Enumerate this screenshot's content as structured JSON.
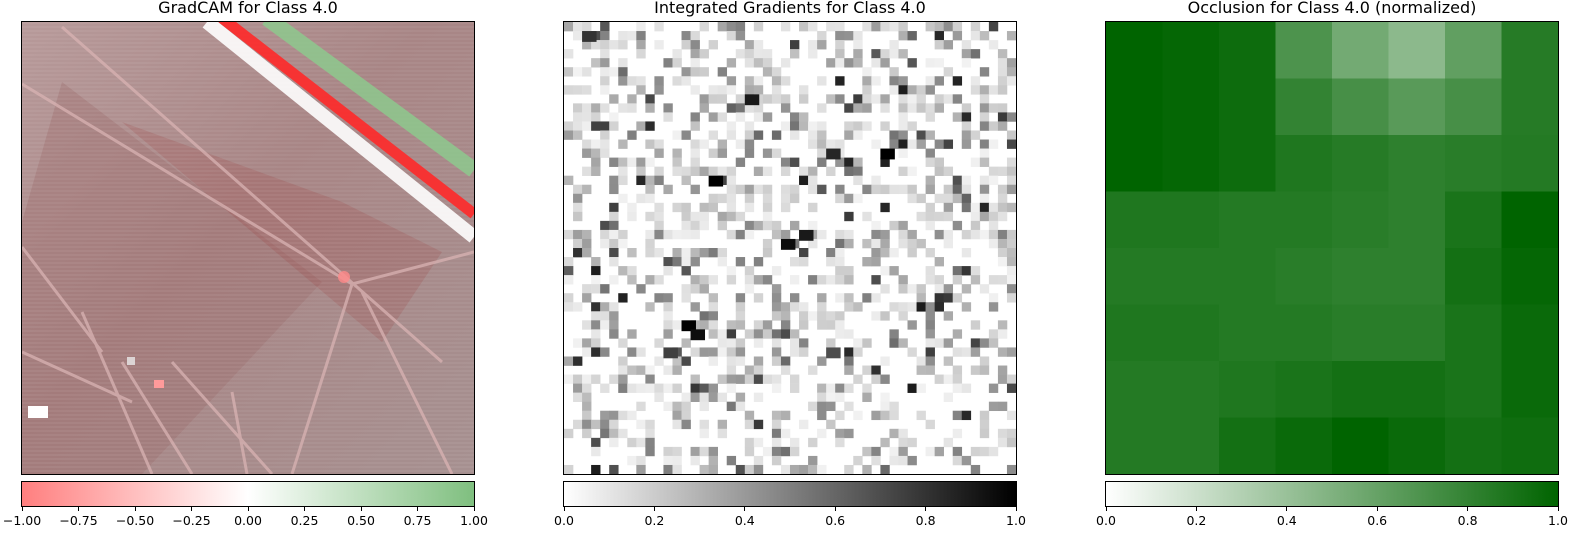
{
  "chart_data": [
    {
      "type": "heatmap",
      "title": "GradCAM for Class 4.0",
      "cmap": "red-white-green (diverging)",
      "colors": {
        "low": "#ff7f7f",
        "mid": "#ffffff",
        "high": "#7fbf7f"
      },
      "colorbar": {
        "range": [
          -1.0,
          1.0
        ],
        "ticks": [
          -1.0,
          -0.75,
          -0.5,
          -0.25,
          0.0,
          0.25,
          0.5,
          0.75,
          1.0
        ],
        "tick_labels": [
          "−1.00",
          "−0.75",
          "−0.50",
          "−0.25",
          "0.00",
          "0.25",
          "0.50",
          "0.75",
          "1.00"
        ]
      }
    },
    {
      "type": "heatmap",
      "title": "Integrated Gradients for Class 4.0",
      "cmap": "greys",
      "colors": {
        "low": "#ffffff",
        "high": "#000000"
      },
      "colorbar": {
        "range": [
          0.0,
          1.0
        ],
        "ticks": [
          0.0,
          0.2,
          0.4,
          0.6,
          0.8,
          1.0
        ],
        "tick_labels": [
          "0.0",
          "0.2",
          "0.4",
          "0.6",
          "0.8",
          "1.0"
        ]
      }
    },
    {
      "type": "heatmap",
      "title": "Occlusion for Class 4.0 (normalized)",
      "cmap": "white-green",
      "colors": {
        "low": "#ffffff",
        "high": "#006400"
      },
      "grid": {
        "rows": 8,
        "cols": 8,
        "values": [
          [
            1.0,
            0.98,
            0.95,
            0.7,
            0.55,
            0.45,
            0.62,
            0.85
          ],
          [
            1.0,
            0.98,
            0.95,
            0.8,
            0.72,
            0.65,
            0.72,
            0.85
          ],
          [
            1.0,
            0.98,
            0.95,
            0.88,
            0.85,
            0.82,
            0.84,
            0.86
          ],
          [
            0.88,
            0.88,
            0.86,
            0.86,
            0.84,
            0.82,
            0.9,
            1.0
          ],
          [
            0.86,
            0.86,
            0.86,
            0.84,
            0.82,
            0.82,
            0.92,
            0.98
          ],
          [
            0.88,
            0.88,
            0.86,
            0.86,
            0.84,
            0.84,
            0.9,
            0.96
          ],
          [
            0.86,
            0.86,
            0.88,
            0.9,
            0.92,
            0.92,
            0.9,
            0.96
          ],
          [
            0.86,
            0.86,
            0.92,
            0.96,
            1.0,
            0.96,
            0.92,
            0.94
          ]
        ]
      },
      "colorbar": {
        "range": [
          0.0,
          1.0
        ],
        "ticks": [
          0.0,
          0.2,
          0.4,
          0.6,
          0.8,
          1.0
        ],
        "tick_labels": [
          "0.0",
          "0.2",
          "0.4",
          "0.6",
          "0.8",
          "1.0"
        ]
      }
    }
  ]
}
